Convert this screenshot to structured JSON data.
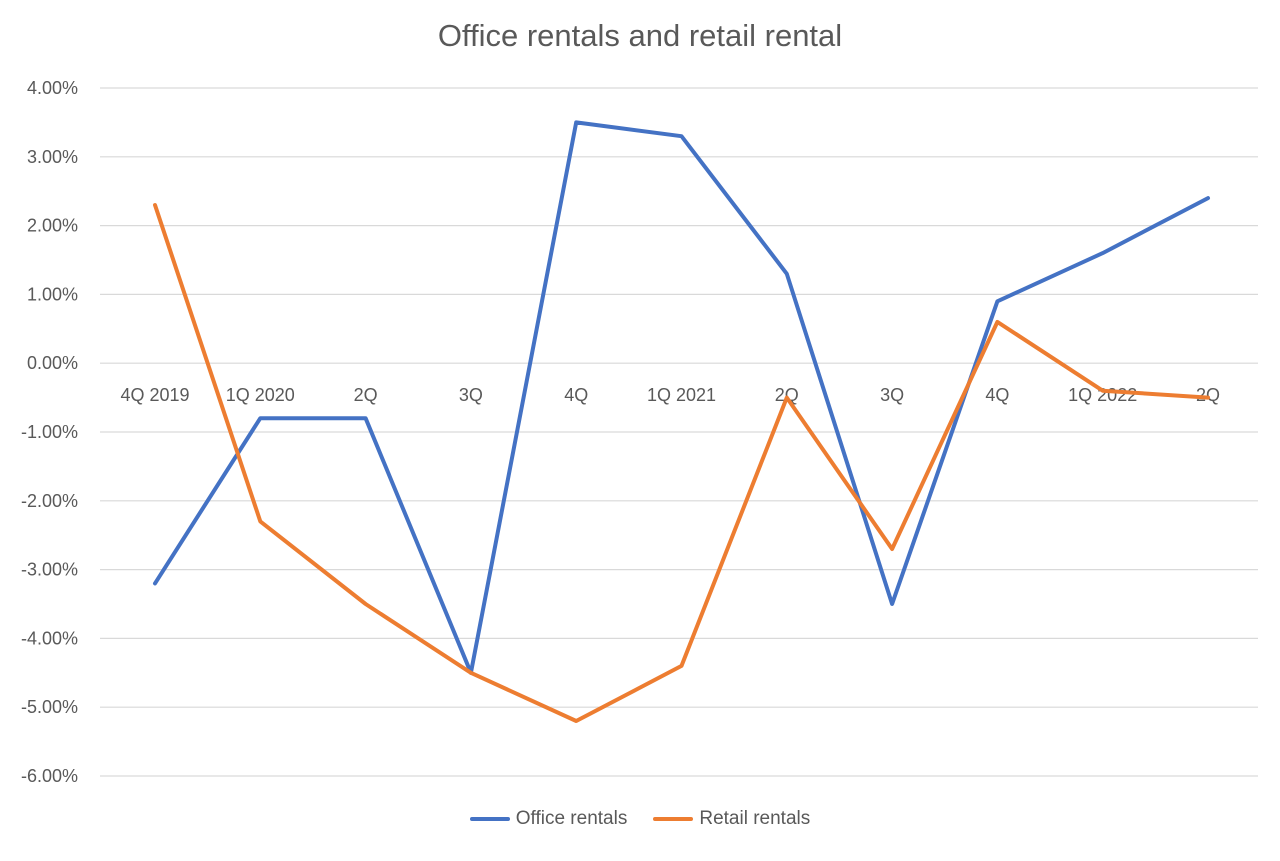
{
  "chart_data": {
    "type": "line",
    "title": "Office rentals and retail rental",
    "xlabel": "",
    "ylabel": "",
    "categories": [
      "4Q 2019",
      "1Q 2020",
      "2Q",
      "3Q",
      "4Q",
      "1Q 2021",
      "2Q",
      "3Q",
      "4Q",
      "1Q 2022",
      "2Q"
    ],
    "ylim": [
      -6,
      4
    ],
    "yticks": [
      "4.00%",
      "3.00%",
      "2.00%",
      "1.00%",
      "0.00%",
      "-1.00%",
      "-2.00%",
      "-3.00%",
      "-4.00%",
      "-5.00%",
      "-6.00%"
    ],
    "grid": true,
    "legend_position": "bottom",
    "series": [
      {
        "name": "Office rentals",
        "color": "#4472C4",
        "values": [
          -3.2,
          -0.8,
          -0.8,
          -4.5,
          3.5,
          3.3,
          1.3,
          -3.5,
          0.9,
          1.6,
          2.4
        ]
      },
      {
        "name": "Retail rentals",
        "color": "#ED7D31",
        "values": [
          2.3,
          -2.3,
          -3.5,
          -4.5,
          -5.2,
          -4.4,
          -0.5,
          -2.7,
          0.6,
          -0.4,
          -0.5
        ]
      }
    ]
  }
}
